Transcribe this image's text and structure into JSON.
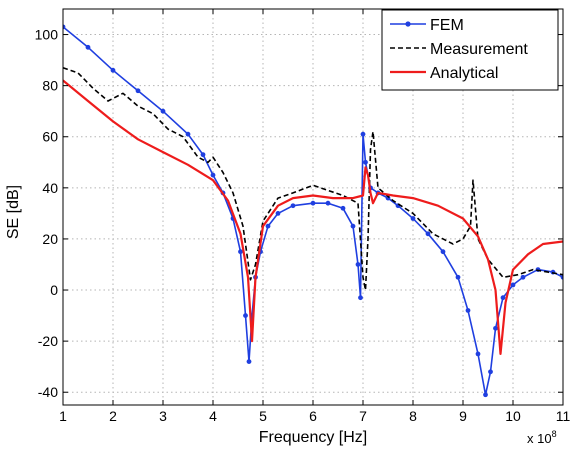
{
  "chart_data": {
    "type": "line",
    "title": "",
    "xlabel": "Frequency [Hz]",
    "ylabel": "SE [dB]",
    "x_multiplier_label": "x 10",
    "x_multiplier_exp": "8",
    "xlim": [
      1,
      11
    ],
    "ylim": [
      -45,
      110
    ],
    "xticks": [
      1,
      2,
      3,
      4,
      5,
      6,
      7,
      8,
      9,
      10,
      11
    ],
    "yticks": [
      -40,
      -20,
      0,
      20,
      40,
      60,
      80,
      100
    ],
    "grid": true,
    "legend_position": "top-right",
    "series": [
      {
        "name": "FEM",
        "color": "#1f3fe0",
        "style": "solid-dots",
        "x": [
          1.0,
          1.5,
          2.0,
          2.5,
          3.0,
          3.5,
          3.8,
          4.0,
          4.2,
          4.4,
          4.55,
          4.65,
          4.72,
          4.78,
          4.85,
          4.95,
          5.1,
          5.3,
          5.6,
          6.0,
          6.3,
          6.6,
          6.8,
          6.9,
          6.95,
          7.0,
          7.05,
          7.15,
          7.3,
          7.5,
          7.7,
          8.0,
          8.3,
          8.6,
          8.9,
          9.1,
          9.3,
          9.45,
          9.55,
          9.65,
          9.8,
          10.0,
          10.2,
          10.5,
          10.8,
          11.0
        ],
        "y": [
          103,
          95,
          86,
          78,
          70,
          61,
          53,
          45,
          38,
          28,
          15,
          -10,
          -28,
          -10,
          5,
          15,
          25,
          30,
          33,
          34,
          34,
          32,
          25,
          10,
          -3,
          61,
          50,
          40,
          38,
          36,
          33,
          28,
          22,
          15,
          5,
          -8,
          -25,
          -41,
          -32,
          -15,
          -3,
          2,
          5,
          8,
          7,
          5
        ]
      },
      {
        "name": "Measurement",
        "color": "#000000",
        "style": "dashed",
        "x": [
          1.0,
          1.3,
          1.6,
          1.9,
          2.2,
          2.5,
          2.8,
          3.1,
          3.4,
          3.7,
          3.9,
          4.0,
          4.2,
          4.4,
          4.6,
          4.75,
          4.85,
          5.0,
          5.3,
          5.6,
          6.0,
          6.3,
          6.6,
          6.9,
          7.0,
          7.05,
          7.1,
          7.15,
          7.2,
          7.3,
          7.6,
          8.0,
          8.4,
          8.8,
          9.0,
          9.15,
          9.2,
          9.3,
          9.5,
          9.8,
          10.1,
          10.4,
          10.7,
          11.0
        ],
        "y": [
          87,
          85,
          79,
          74,
          77,
          72,
          69,
          63,
          60,
          52,
          50,
          52,
          46,
          38,
          25,
          4,
          10,
          27,
          36,
          38,
          41,
          39,
          37,
          34,
          5,
          0,
          20,
          55,
          62,
          40,
          35,
          30,
          22,
          18,
          20,
          25,
          43,
          20,
          12,
          5,
          6,
          8,
          7,
          6
        ]
      },
      {
        "name": "Analytical",
        "color": "#ee1c1c",
        "style": "solid",
        "x": [
          1.0,
          1.5,
          2.0,
          2.5,
          3.0,
          3.5,
          4.0,
          4.3,
          4.55,
          4.7,
          4.78,
          4.85,
          5.0,
          5.3,
          5.6,
          6.0,
          6.4,
          6.8,
          7.0,
          7.05,
          7.1,
          7.15,
          7.2,
          7.3,
          7.6,
          8.0,
          8.5,
          9.0,
          9.3,
          9.5,
          9.65,
          9.75,
          9.85,
          10.0,
          10.3,
          10.6,
          11.0
        ],
        "y": [
          82,
          74,
          66,
          59,
          54,
          49,
          43,
          35,
          22,
          5,
          -20,
          5,
          25,
          33,
          36,
          37,
          36,
          36,
          37,
          48,
          45,
          38,
          34,
          38,
          37,
          36,
          33,
          28,
          21,
          12,
          0,
          -25,
          -5,
          8,
          14,
          18,
          19
        ]
      }
    ]
  }
}
